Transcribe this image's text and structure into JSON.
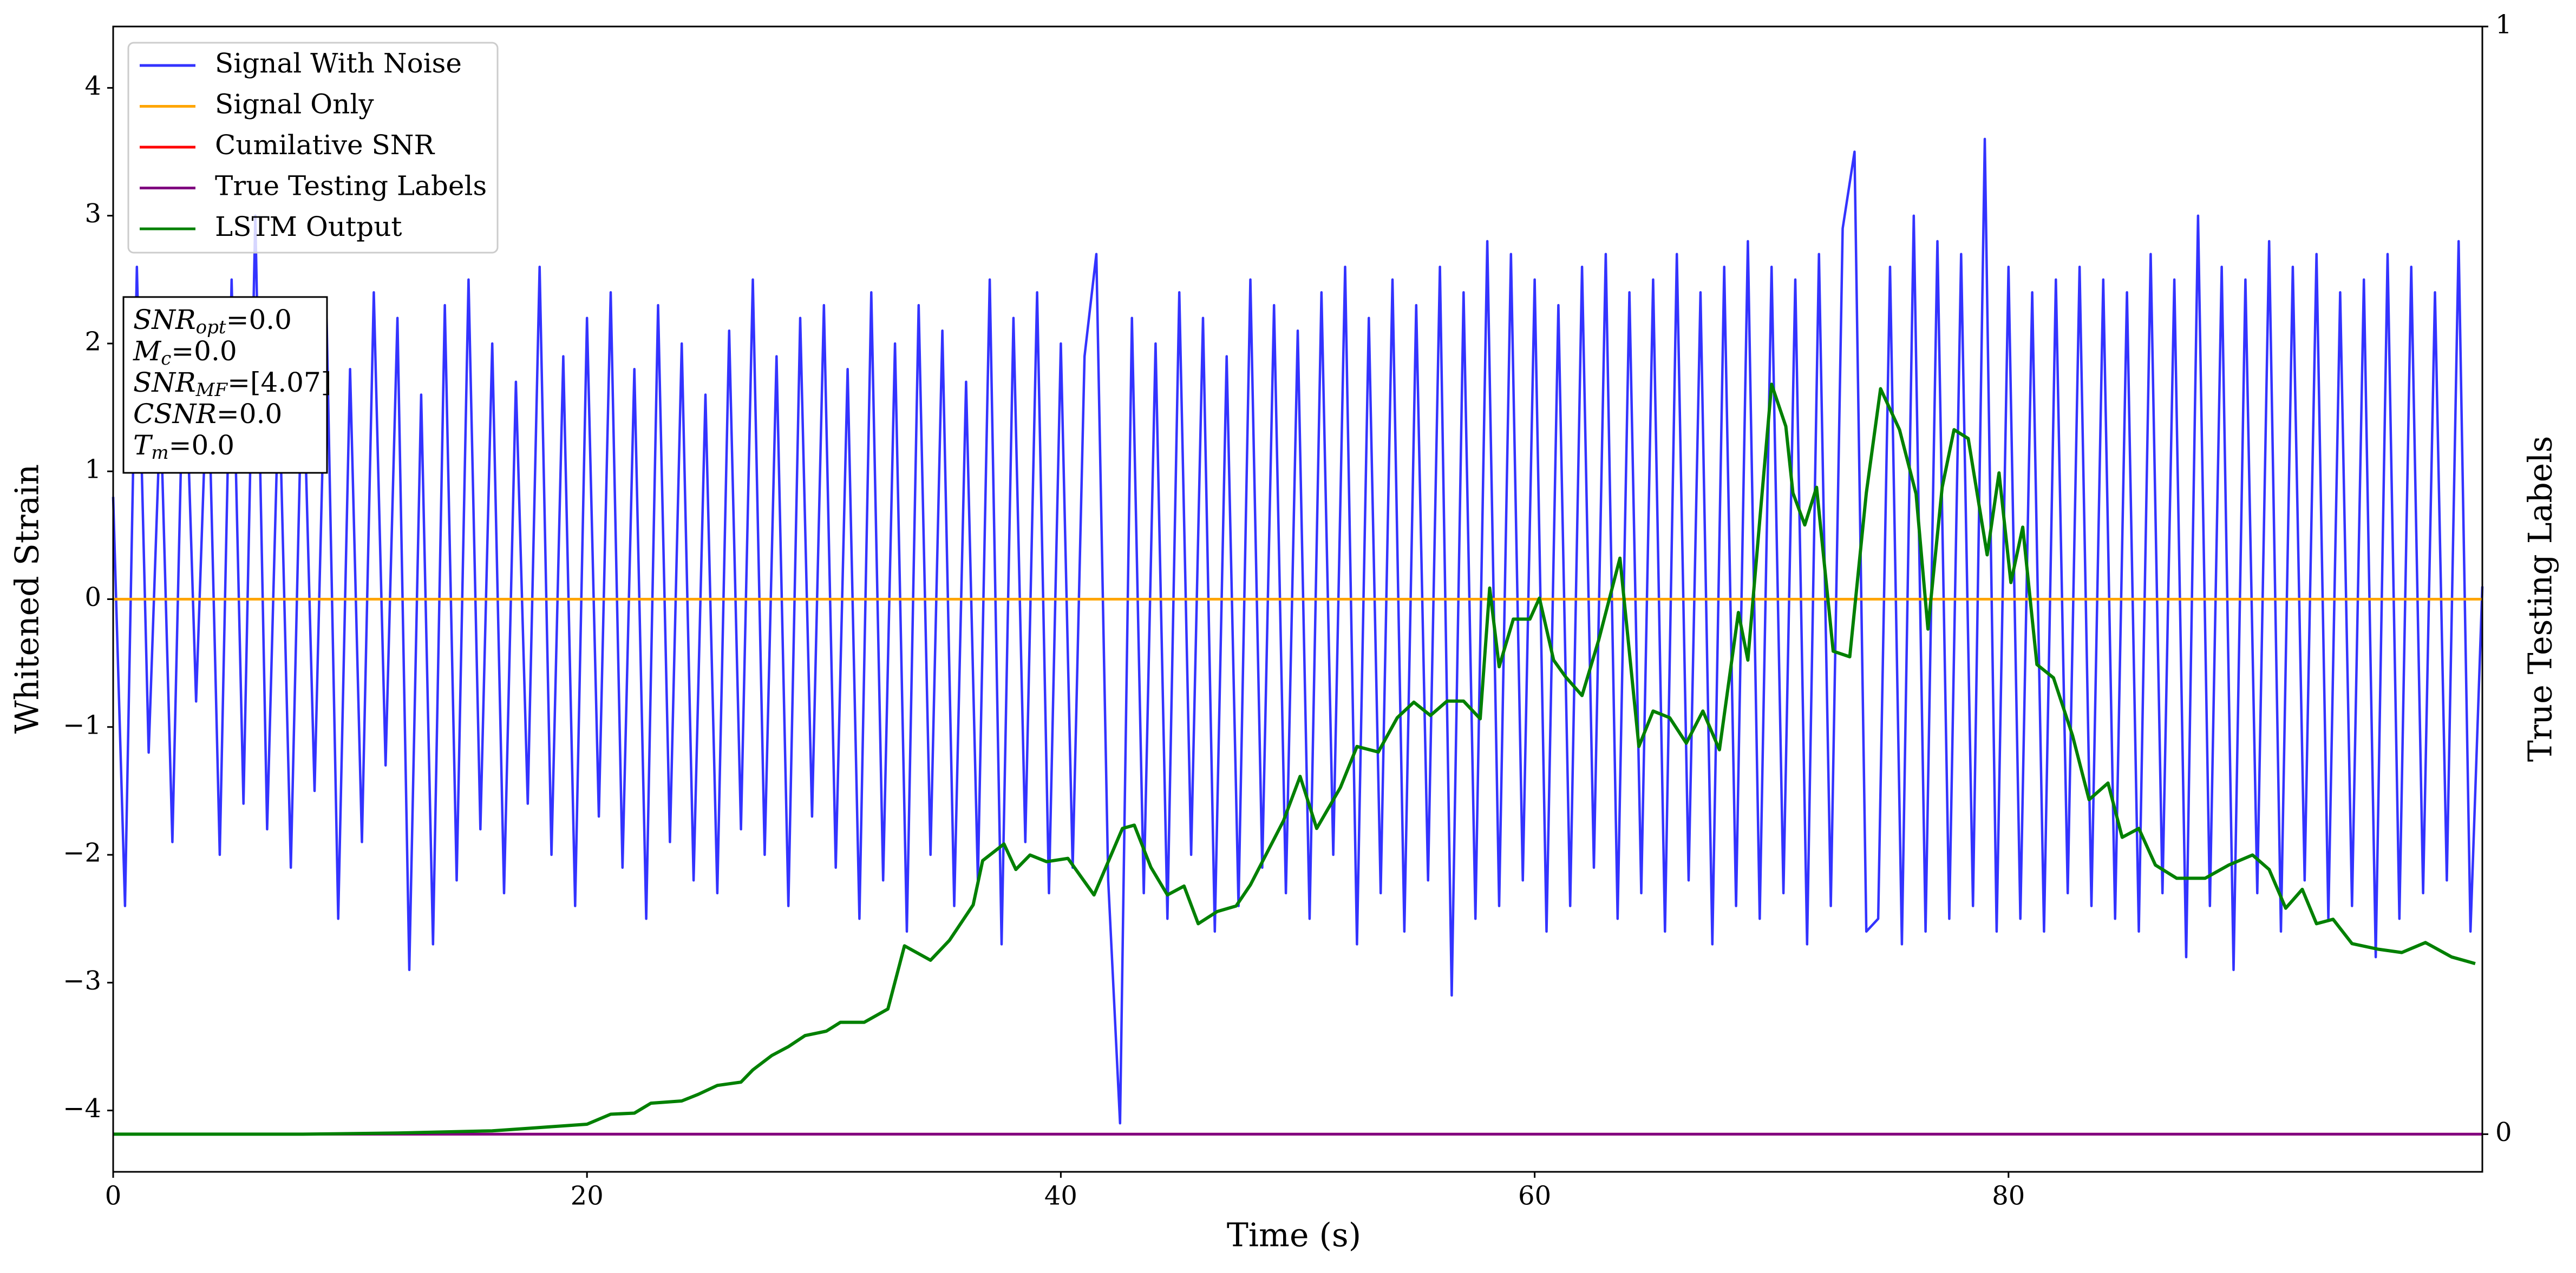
{
  "chart_data": {
    "type": "line",
    "xlabel": "Time (s)",
    "ylabel": "Whitened Strain",
    "y2label": "True Testing Labels",
    "xlim": [
      0,
      100
    ],
    "xticks": [
      0,
      20,
      40,
      60,
      80
    ],
    "ylim": [
      -4.48,
      4.48
    ],
    "yticks": [
      {
        "value": -4,
        "label": "−4"
      },
      {
        "value": -3,
        "label": "−3"
      },
      {
        "value": -2,
        "label": "−2"
      },
      {
        "value": -1,
        "label": "−1"
      },
      0,
      1,
      2,
      3,
      4
    ],
    "y2lim": [
      -0.034,
      1
    ],
    "y2ticks": [
      0,
      1
    ],
    "legend": "upper left",
    "annotations": [
      {
        "symbol": "SNR",
        "subscript": "opt",
        "text": "=0.0"
      },
      {
        "symbol": "M",
        "subscript": "c",
        "text": "=0.0"
      },
      {
        "symbol": "SNR",
        "subscript": "MF",
        "text": "=[4.07]"
      },
      {
        "symbol": "CSNR",
        "text": "=0.0"
      },
      {
        "symbol": "T",
        "subscript": "m",
        "text": "=0.0"
      }
    ],
    "series": [
      {
        "name": "Signal With Noise",
        "color": "#3333ff",
        "x": [
          0,
          0.5,
          1,
          1.5,
          2,
          2.5,
          3,
          3.5,
          4,
          4.5,
          5,
          5.5,
          6,
          6.5,
          7,
          7.5,
          8,
          8.5,
          9,
          9.5,
          10,
          10.5,
          11,
          11.5,
          12,
          12.5,
          13,
          13.5,
          14,
          14.5,
          15,
          15.5,
          16,
          16.5,
          17,
          17.5,
          18,
          18.5,
          19,
          19.5,
          20,
          20.5,
          21,
          21.5,
          22,
          22.5,
          23,
          23.5,
          24,
          24.5,
          25,
          25.5,
          26,
          26.5,
          27,
          27.5,
          28,
          28.5,
          29,
          29.5,
          30,
          30.5,
          31,
          31.5,
          32,
          32.5,
          33,
          33.5,
          34,
          34.5,
          35,
          35.5,
          36,
          36.5,
          37,
          37.5,
          38,
          38.5,
          39,
          39.5,
          40,
          40.5,
          41,
          41.5,
          42,
          42.5,
          43,
          43.5,
          44,
          44.5,
          45,
          45.5,
          46,
          46.5,
          47,
          47.5,
          48,
          48.5,
          49,
          49.5,
          50,
          50.5,
          51,
          51.5,
          52,
          52.5,
          53,
          53.5,
          54,
          54.5,
          55,
          55.5,
          56,
          56.5,
          57,
          57.5,
          58,
          58.5,
          59,
          59.5,
          60,
          60.5,
          61,
          61.5,
          62,
          62.5,
          63,
          63.5,
          64,
          64.5,
          65,
          65.5,
          66,
          66.5,
          67,
          67.5,
          68,
          68.5,
          69,
          69.5,
          70,
          70.5,
          71,
          71.5,
          72,
          72.5,
          73,
          73.5,
          74,
          74.5,
          75,
          75.5,
          76,
          76.5,
          77,
          77.5,
          78,
          78.5,
          79,
          79.5,
          80,
          80.5,
          81,
          81.5,
          82,
          82.5,
          83,
          83.5,
          84,
          84.5,
          85,
          85.5,
          86,
          86.5,
          87,
          87.5,
          88,
          88.5,
          89,
          89.5,
          90,
          90.5,
          91,
          91.5,
          92,
          92.5,
          93,
          93.5,
          94,
          94.5,
          95,
          95.5,
          96,
          96.5,
          97,
          97.5,
          98,
          98.5,
          99,
          99.5,
          100
        ],
        "values": [
          0.8,
          -2.4,
          2.6,
          -1.2,
          1.5,
          -1.9,
          2.2,
          -0.8,
          1.9,
          -2.0,
          2.5,
          -1.6,
          3.0,
          -1.8,
          1.7,
          -2.1,
          2.0,
          -1.5,
          2.3,
          -2.5,
          1.8,
          -1.9,
          2.4,
          -1.3,
          2.2,
          -2.9,
          1.6,
          -2.7,
          2.3,
          -2.2,
          2.5,
          -1.8,
          2.0,
          -2.3,
          1.7,
          -1.6,
          2.6,
          -2.0,
          1.9,
          -2.4,
          2.2,
          -1.7,
          2.4,
          -2.1,
          1.8,
          -2.5,
          2.3,
          -1.9,
          2.0,
          -2.2,
          1.6,
          -2.3,
          2.1,
          -1.8,
          2.5,
          -2.0,
          1.9,
          -2.4,
          2.2,
          -1.7,
          2.3,
          -2.1,
          1.8,
          -2.5,
          2.4,
          -2.2,
          2.0,
          -2.6,
          2.3,
          -2.0,
          2.1,
          -2.4,
          1.7,
          -2.2,
          2.5,
          -2.7,
          2.2,
          -1.9,
          2.4,
          -2.3,
          2.0,
          -2.1,
          1.9,
          2.7,
          -2.2,
          -4.1,
          2.2,
          -2.3,
          2.0,
          -2.5,
          2.4,
          -2.0,
          2.2,
          -2.6,
          1.9,
          -2.4,
          2.5,
          -2.1,
          2.3,
          -2.3,
          2.1,
          -2.5,
          2.4,
          -2.0,
          2.6,
          -2.7,
          2.2,
          -2.3,
          2.5,
          -2.6,
          2.3,
          -2.2,
          2.6,
          -3.1,
          2.4,
          -2.5,
          2.8,
          -2.4,
          2.7,
          -2.2,
          2.5,
          -2.6,
          2.3,
          -2.4,
          2.6,
          -2.1,
          2.7,
          -2.5,
          2.4,
          -2.3,
          2.5,
          -2.6,
          2.7,
          -2.2,
          2.4,
          -2.7,
          2.6,
          -2.4,
          2.8,
          -2.5,
          2.6,
          -2.3,
          2.5,
          -2.7,
          2.7,
          -2.4,
          2.9,
          3.5,
          -2.6,
          -2.5,
          2.6,
          -2.7,
          3.0,
          -2.6,
          2.8,
          -2.5,
          2.7,
          -2.4,
          3.6,
          -2.6,
          2.6,
          -2.5,
          2.4,
          -2.6,
          2.5,
          -2.3,
          2.6,
          -2.4,
          2.5,
          -2.5,
          2.4,
          -2.6,
          2.7,
          -2.3,
          2.5,
          -2.8,
          3.0,
          -2.4,
          2.6,
          -2.9,
          2.5,
          -2.3,
          2.8,
          -2.6,
          2.6,
          -2.2,
          2.7,
          -2.5,
          2.4,
          -2.4,
          2.5,
          -2.8,
          2.7,
          -2.5,
          2.6,
          -2.3,
          2.4,
          -2.2,
          2.8,
          -2.6,
          0.1
        ]
      },
      {
        "name": "Signal Only",
        "color": "#ffa500",
        "x": [
          0,
          100
        ],
        "values": [
          0,
          0
        ]
      },
      {
        "name": "Cumilative SNR",
        "color": "#ff0000",
        "axis": "y2",
        "x": [
          0,
          100
        ],
        "values": [
          0,
          0
        ]
      },
      {
        "name": "True Testing Labels",
        "color": "#800080",
        "axis": "y2",
        "x": [
          0,
          100
        ],
        "values": [
          0,
          0
        ]
      },
      {
        "name": "LSTM Output",
        "color": "#008000",
        "axis": "y2",
        "x": [
          0,
          8,
          12.0,
          16.0,
          18.0,
          20.0,
          21.0,
          22.0,
          22.7,
          24.0,
          24.7,
          25.5,
          26.5,
          27.0,
          27.8,
          28.5,
          29.2,
          30.1,
          30.7,
          31.7,
          32.7,
          33.4,
          34.5,
          35.3,
          36.3,
          36.7,
          37.6,
          38.1,
          38.7,
          39.4,
          40.3,
          41.4,
          42.6,
          43.1,
          43.8,
          44.5,
          45.2,
          45.8,
          46.6,
          47.4,
          48.0,
          49.4,
          50.1,
          50.8,
          51.8,
          52.5,
          53.4,
          54.2,
          54.9,
          55.6,
          56.3,
          57.0,
          57.7,
          58.1,
          58.5,
          59.1,
          59.8,
          60.2,
          60.8,
          61.3,
          62.0,
          62.7,
          63.6,
          64.4,
          65.0,
          65.7,
          66.4,
          67.1,
          67.8,
          68.6,
          69.0,
          69.5,
          70.0,
          70.6,
          70.9,
          71.4,
          71.9,
          72.6,
          73.3,
          74.0,
          74.6,
          75.4,
          76.1,
          76.6,
          77.2,
          77.7,
          78.3,
          79.1,
          79.6,
          80.1,
          80.6,
          81.2,
          81.9,
          82.7,
          83.4,
          84.2,
          84.8,
          85.5,
          86.2,
          87.1,
          88.3,
          89.3,
          90.3,
          91.0,
          91.7,
          92.4,
          93.0,
          93.7,
          94.5,
          95.6,
          96.6,
          97.6,
          98.7,
          99.7
        ],
        "values": [
          0,
          0,
          0.001,
          0.003,
          0.006,
          0.009,
          0.018,
          0.019,
          0.028,
          0.03,
          0.036,
          0.044,
          0.047,
          0.058,
          0.071,
          0.079,
          0.089,
          0.093,
          0.101,
          0.101,
          0.113,
          0.17,
          0.157,
          0.175,
          0.207,
          0.247,
          0.262,
          0.239,
          0.252,
          0.246,
          0.249,
          0.216,
          0.276,
          0.279,
          0.241,
          0.216,
          0.224,
          0.19,
          0.201,
          0.206,
          0.225,
          0.283,
          0.323,
          0.276,
          0.313,
          0.35,
          0.345,
          0.376,
          0.39,
          0.378,
          0.391,
          0.391,
          0.375,
          0.493,
          0.422,
          0.465,
          0.465,
          0.484,
          0.428,
          0.413,
          0.396,
          0.446,
          0.52,
          0.35,
          0.382,
          0.376,
          0.353,
          0.382,
          0.347,
          0.471,
          0.428,
          0.554,
          0.677,
          0.639,
          0.579,
          0.55,
          0.584,
          0.436,
          0.431,
          0.579,
          0.673,
          0.636,
          0.578,
          0.456,
          0.584,
          0.636,
          0.628,
          0.523,
          0.597,
          0.498,
          0.548,
          0.424,
          0.412,
          0.36,
          0.302,
          0.317,
          0.268,
          0.276,
          0.243,
          0.231,
          0.231,
          0.243,
          0.252,
          0.239,
          0.204,
          0.221,
          0.19,
          0.194,
          0.172,
          0.167,
          0.164,
          0.173,
          0.16,
          0.154
        ]
      }
    ]
  }
}
